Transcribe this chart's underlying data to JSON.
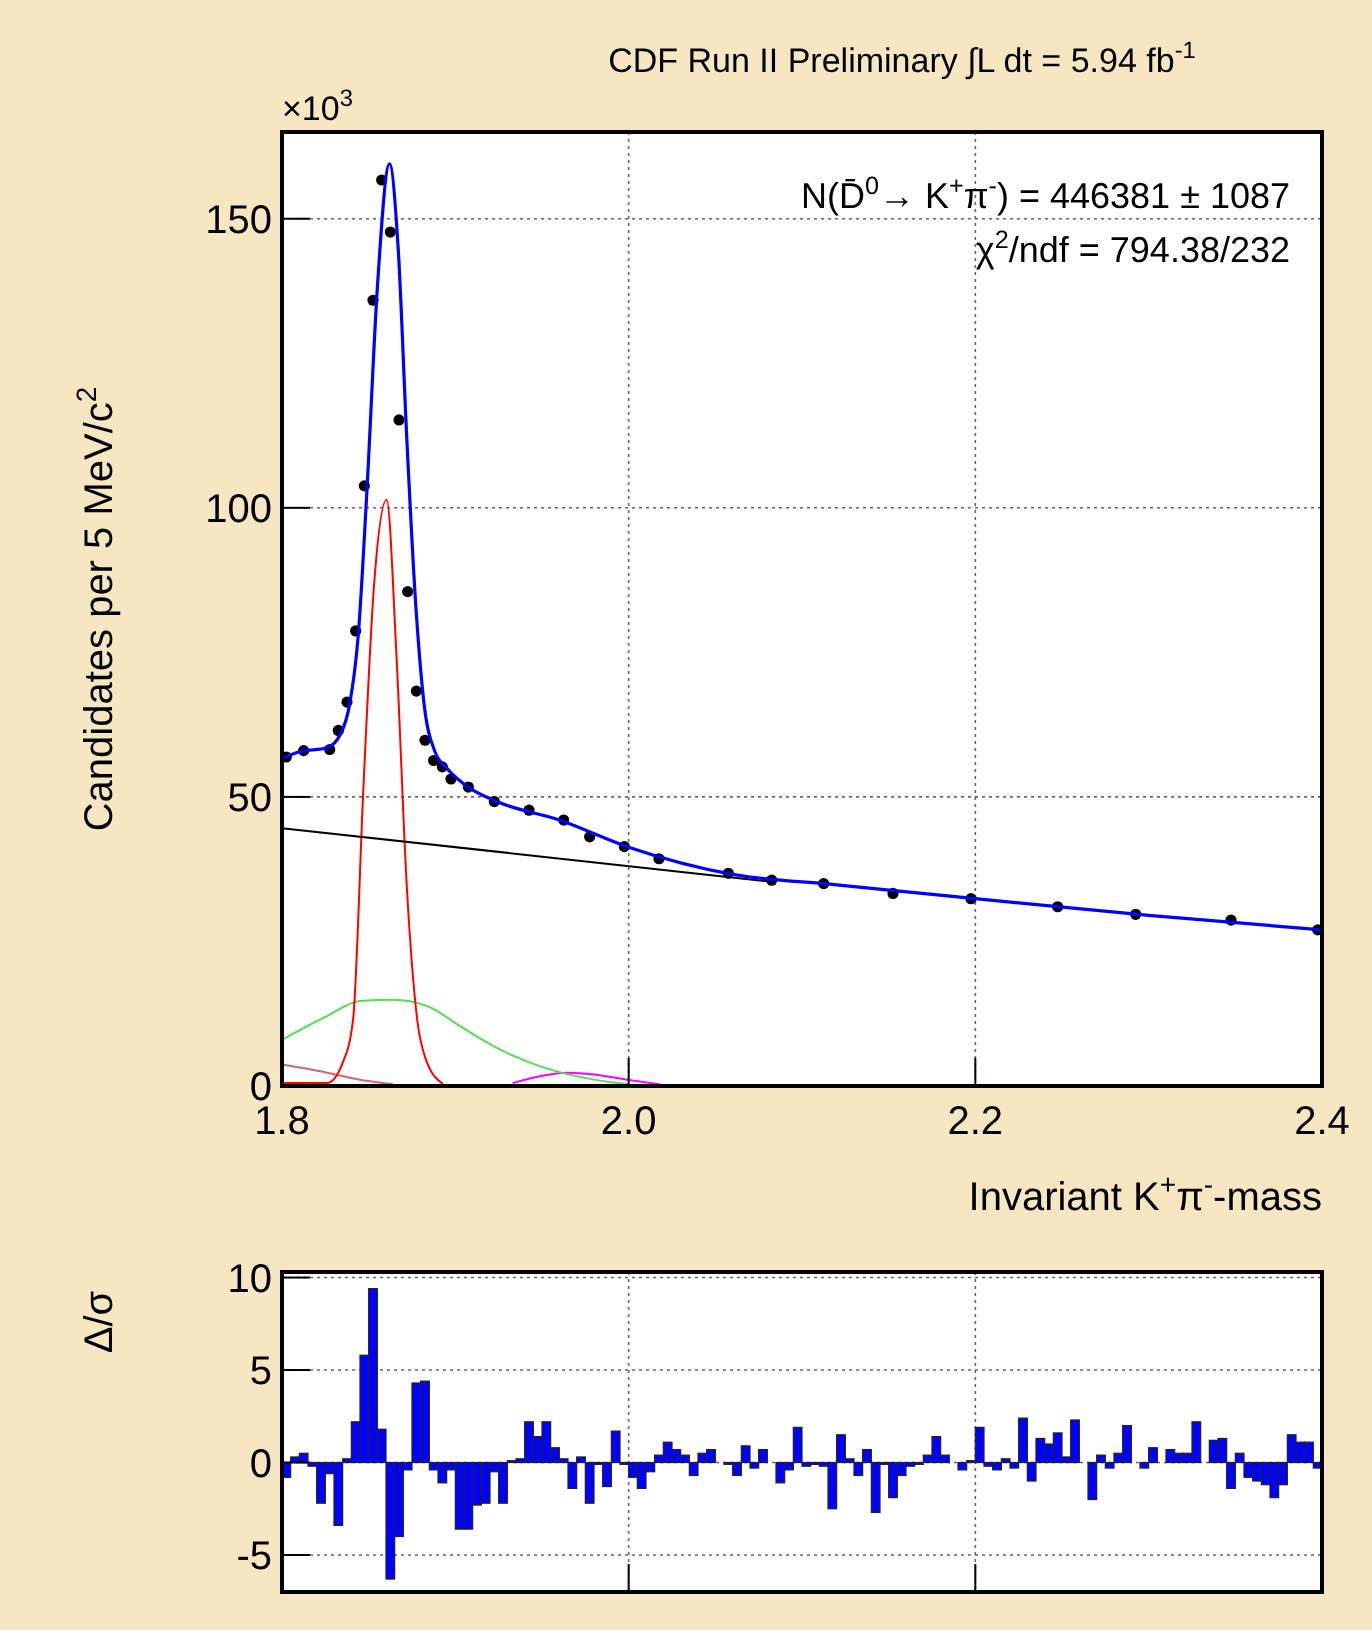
{
  "chart_data": [
    {
      "type": "line",
      "title": "CDF Run II Preliminary ∫L dt = 5.94 fb$^{-1}$",
      "xlabel": "Invariant K$^{+}$π$^{-}$-mass",
      "ylabel": "Candidates per 5 MeV/c$^{2}$",
      "annotations": [
        "×10$^{3}$",
        "N(D̄$^{0}$→ K$^{+}$π$^{-}$) = 446381 ± 1087",
        "χ$^{2}$/ndf = 794.38/232"
      ],
      "xlim": [
        1.8,
        2.4
      ],
      "xticks": [
        1.8,
        {
          "value": 2,
          "label": "2.0"
        },
        2.2,
        2.4
      ],
      "ylim": [
        0,
        165
      ],
      "yticks": [
        0,
        50,
        100,
        150
      ],
      "grid": true,
      "series": [
        {
          "type": "line",
          "color": "#cc6677",
          "x": [
            1.8,
            1.826,
            1.845,
            1.864
          ],
          "values": [
            3.7,
            2.3,
            1.1,
            0.3
          ]
        },
        {
          "type": "line",
          "color": "#ff00ff",
          "x": [
            1.933,
            1.949,
            1.964,
            1.98,
            1.999,
            2.018
          ],
          "values": [
            0.5,
            1.7,
            2.3,
            2.0,
            1.1,
            0.3
          ]
        },
        {
          "type": "line",
          "color": "#55dd55",
          "x": [
            1.8,
            1.826,
            1.845,
            1.864,
            1.884,
            1.903,
            1.922,
            1.949,
            1.98,
            2.0
          ],
          "values": [
            8.0,
            12.1,
            14.7,
            14.9,
            13.8,
            10.3,
            6.9,
            3.4,
            1.1,
            0.3
          ]
        },
        {
          "type": "line",
          "color": "#ff0000",
          "x": [
            1.8,
            1.826,
            1.835,
            1.841,
            1.847,
            1.853,
            1.8604,
            1.866,
            1.872,
            1.878,
            1.883,
            1.893
          ],
          "values": [
            0.5,
            0.5,
            4.0,
            11.5,
            51.8,
            86.2,
            101.4,
            74.7,
            34.5,
            11.5,
            4.6,
            0.3
          ]
        },
        {
          "type": "line",
          "color": "#000000",
          "x": [
            1.8,
            2.08
          ],
          "values": [
            44.6,
            35.4
          ]
        },
        {
          "type": "scatter",
          "marker": "circle",
          "color": "#000000",
          "x": [
            1.8025,
            1.8125,
            1.8275,
            1.8325,
            1.8375,
            1.8425,
            1.8475,
            1.8525,
            1.8575,
            1.8625,
            1.8675,
            1.8725,
            1.8775,
            1.8825,
            1.8875,
            1.8925,
            1.8975,
            1.9075,
            1.9225,
            1.9425,
            1.9625,
            1.9775,
            1.9975,
            2.0175,
            2.0575,
            2.0825,
            2.1125,
            2.1525,
            2.1975,
            2.2475,
            2.2925,
            2.3475,
            2.3975
          ],
          "values": [
            56.9,
            58.0,
            58.2,
            61.5,
            66.4,
            78.7,
            103.8,
            135.9,
            156.7,
            147.7,
            115.2,
            85.5,
            68.3,
            59.8,
            56.3,
            55.2,
            53.1,
            51.7,
            49.2,
            47.7,
            46.0,
            43.1,
            41.4,
            39.3,
            36.8,
            35.6,
            35.0,
            33.3,
            32.4,
            31.0,
            29.7,
            28.7,
            27.0
          ]
        },
        {
          "type": "line",
          "color": "#0000ff",
          "x": [
            1.8,
            1.81,
            1.826,
            1.834,
            1.839,
            1.844,
            1.849,
            1.855,
            1.862,
            1.867,
            1.872,
            1.877,
            1.882,
            1.888,
            1.895,
            1.905,
            1.924,
            1.96,
            2.0,
            2.06,
            2.12,
            2.2,
            2.3,
            2.4
          ],
          "values": [
            56.6,
            57.8,
            58.5,
            61.0,
            66,
            78,
            103,
            138,
            159.5,
            145,
            112,
            84,
            66,
            58,
            55,
            52.2,
            49.2,
            46,
            41.3,
            36.6,
            34.8,
            32.4,
            29.5,
            27.0
          ]
        }
      ]
    },
    {
      "type": "histogram",
      "ylabel": "Δ/σ",
      "xlim": [
        1.8,
        2.4
      ],
      "xticks": [
        {
          "value": 1.8,
          "label": null
        },
        {
          "value": 2,
          "label": null
        },
        {
          "value": 2.2,
          "label": null
        },
        {
          "value": 2.4,
          "label": null
        }
      ],
      "ylim": [
        -7,
        10.3
      ],
      "yticks": [
        -5,
        0,
        5,
        10
      ],
      "grid": true,
      "tick_labels": "y",
      "color": "#0000ff",
      "bins": [
        1.8,
        1.805,
        1.81,
        1.815,
        1.82,
        1.825,
        1.83,
        1.835,
        1.84,
        1.845,
        1.85,
        1.855,
        1.86,
        1.865,
        1.87,
        1.875,
        1.88,
        1.885,
        1.89,
        1.895,
        1.9,
        1.905,
        1.91,
        1.915,
        1.92,
        1.925,
        1.93,
        1.935,
        1.94,
        1.945,
        1.95,
        1.955,
        1.96,
        1.965,
        1.97,
        1.975,
        1.98,
        1.985,
        1.99,
        1.995,
        2.0,
        2.005,
        2.01,
        2.015,
        2.02,
        2.025,
        2.03,
        2.035,
        2.04,
        2.045,
        2.05,
        2.055,
        2.06,
        2.065,
        2.07,
        2.075,
        2.08,
        2.085,
        2.09,
        2.095,
        2.1,
        2.105,
        2.11,
        2.115,
        2.12,
        2.125,
        2.13,
        2.135,
        2.14,
        2.145,
        2.15,
        2.155,
        2.16,
        2.165,
        2.17,
        2.175,
        2.18,
        2.185,
        2.19,
        2.195,
        2.2,
        2.205,
        2.21,
        2.215,
        2.22,
        2.225,
        2.23,
        2.235,
        2.24,
        2.245,
        2.25,
        2.255,
        2.26,
        2.265,
        2.27,
        2.275,
        2.28,
        2.285,
        2.29,
        2.295,
        2.3,
        2.305,
        2.31,
        2.315,
        2.32,
        2.325,
        2.33,
        2.335,
        2.34,
        2.345,
        2.35,
        2.355,
        2.36,
        2.365,
        2.37,
        2.375,
        2.38,
        2.385,
        2.39,
        2.395,
        2.4
      ],
      "values": [
        -0.8,
        0.3,
        0.5,
        -0.2,
        -2.2,
        -0.6,
        -3.4,
        0.2,
        2.2,
        5.8,
        9.4,
        1.8,
        -6.3,
        -4.0,
        -0.4,
        4.3,
        4.4,
        -0.4,
        -1.1,
        -0.4,
        -3.6,
        -3.6,
        -2.3,
        -2.2,
        -0.5,
        -2.2,
        0.1,
        0.2,
        2.2,
        1.4,
        2.2,
        0.8,
        0.2,
        -1.4,
        0.3,
        -2.2,
        -0.1,
        -1.3,
        1.7,
        -0.1,
        -0.8,
        -1.4,
        -0.5,
        0.4,
        1.1,
        0.7,
        0.4,
        -0.7,
        0.5,
        0.7,
        0,
        -0.1,
        -0.7,
        0.9,
        -0.3,
        0.7,
        0,
        -1.1,
        -0.4,
        1.9,
        -0.2,
        -0.1,
        -0.2,
        -2.5,
        1.5,
        0.2,
        -0.7,
        0.7,
        -2.7,
        -0.1,
        -1.9,
        -0.7,
        -0.2,
        -0.1,
        0.4,
        1.4,
        0.4,
        0,
        -0.4,
        0.1,
        1.9,
        -0.2,
        -0.4,
        0.2,
        -0.3,
        2.4,
        -1.0,
        1.3,
        1.0,
        1.6,
        0.3,
        2.3,
        0,
        -2.0,
        0.4,
        -0.3,
        0.5,
        2.0,
        0,
        -0.3,
        0.8,
        0,
        0.7,
        0.5,
        0.5,
        2.2,
        0,
        1.2,
        1.3,
        -1.4,
        0.5,
        -0.8,
        -1.0,
        -1.2,
        -1.9,
        -1.2,
        1.5,
        1.1,
        1.1,
        -0.3
      ]
    }
  ]
}
